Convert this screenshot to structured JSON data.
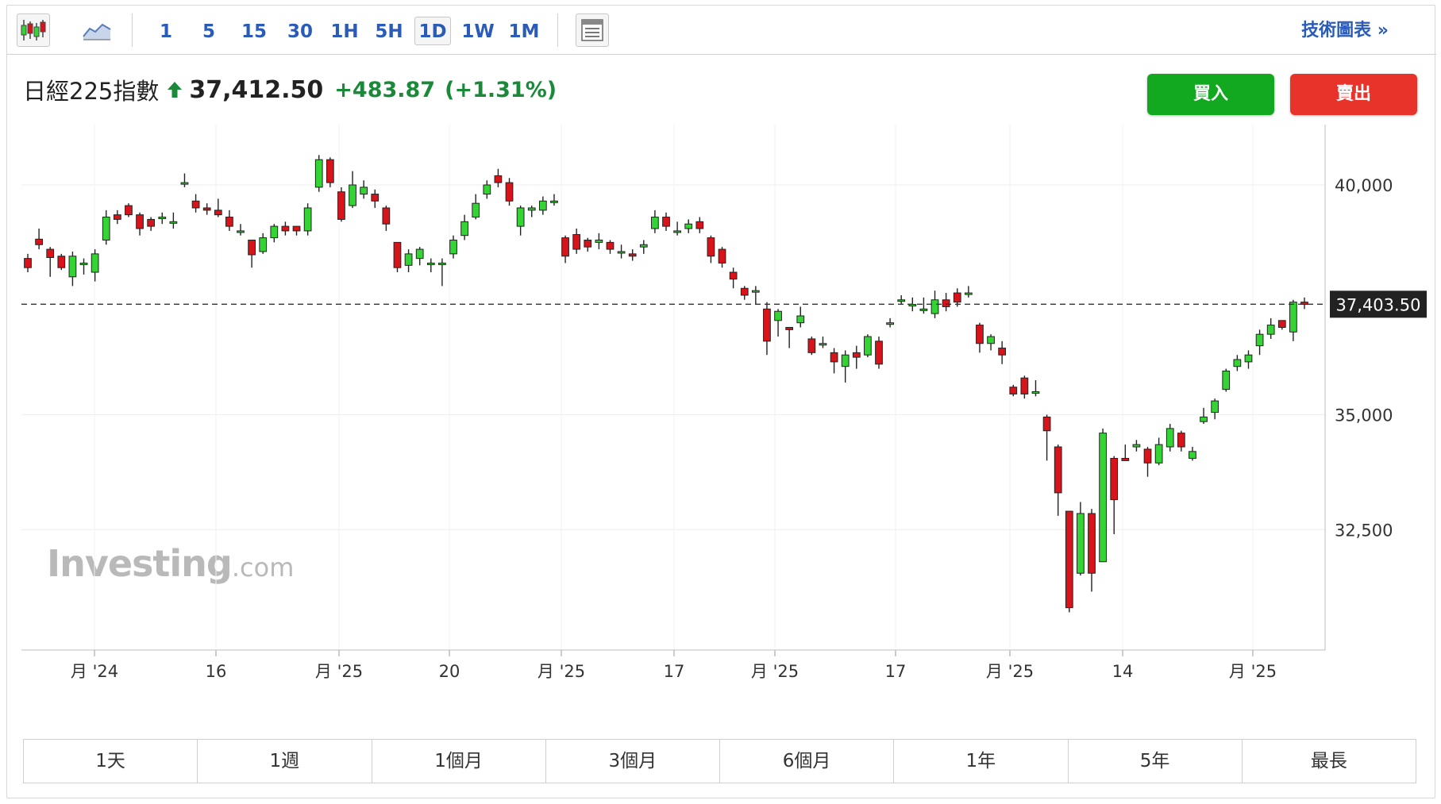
{
  "toolbar": {
    "icons": [
      "candlestick-icon",
      "area-chart-icon",
      "layout-icon"
    ],
    "timeframes": [
      "1",
      "5",
      "15",
      "30",
      "1H",
      "5H",
      "1D",
      "1W",
      "1M"
    ],
    "active_timeframe": "1D",
    "tech_link": "技術圖表 »"
  },
  "header": {
    "name": "日經225指數",
    "price": "37,412.50",
    "change": "+483.87",
    "change_pct": "(+1.31%)",
    "buy_label": "買入",
    "sell_label": "賣出"
  },
  "colors": {
    "up": "#33d433",
    "down": "#d9131a",
    "positive_text": "#1a8a3a",
    "link": "#2a5bb8",
    "buy": "#12a820",
    "sell": "#e8332b"
  },
  "chart_data": {
    "type": "candlestick",
    "y_ticks": [
      {
        "value": 40000,
        "label": "40,000"
      },
      {
        "value": 35000,
        "label": "35,000"
      },
      {
        "value": 32500,
        "label": "32,500"
      }
    ],
    "x_labels": [
      "月 '24",
      "16",
      "月 '25",
      "20",
      "月 '25",
      "17",
      "月 '25",
      "17",
      "月 '25",
      "14",
      "月 '25"
    ],
    "current_price": 37403.5,
    "current_price_label": "37,403.50",
    "ylim": [
      30000,
      41500
    ],
    "candles": [
      [
        38400,
        38200,
        38500,
        38100
      ],
      [
        38820,
        38700,
        39050,
        38600
      ],
      [
        38600,
        38420,
        38650,
        38000
      ],
      [
        38450,
        38200,
        38500,
        38150
      ],
      [
        38000,
        38450,
        38550,
        37800
      ],
      [
        38300,
        38300,
        38400,
        38050
      ],
      [
        38100,
        38500,
        38600,
        37900
      ],
      [
        38800,
        39300,
        39450,
        38700
      ],
      [
        39350,
        39250,
        39450,
        39150
      ],
      [
        39550,
        39350,
        39600,
        39300
      ],
      [
        39350,
        39050,
        39400,
        38900
      ],
      [
        39250,
        39100,
        39300,
        39000
      ],
      [
        39300,
        39300,
        39400,
        39150
      ],
      [
        39200,
        39200,
        39400,
        39050
      ],
      [
        40050,
        40050,
        40250,
        39950
      ],
      [
        39650,
        39500,
        39800,
        39400
      ],
      [
        39500,
        39450,
        39600,
        39350
      ],
      [
        39450,
        39350,
        39700,
        39300
      ],
      [
        39300,
        39100,
        39450,
        39000
      ],
      [
        39000,
        39000,
        39150,
        38900
      ],
      [
        38800,
        38480,
        38800,
        38200
      ],
      [
        38550,
        38850,
        38950,
        38500
      ],
      [
        38850,
        39100,
        39150,
        38750
      ],
      [
        39100,
        39000,
        39200,
        38900
      ],
      [
        39100,
        39000,
        39100,
        38900
      ],
      [
        39000,
        39500,
        39600,
        38900
      ],
      [
        39950,
        40550,
        40650,
        39850
      ],
      [
        40550,
        40050,
        40600,
        39950
      ],
      [
        39850,
        39250,
        39950,
        39200
      ],
      [
        39550,
        40000,
        40300,
        39500
      ],
      [
        39800,
        39950,
        40100,
        39700
      ],
      [
        39800,
        39650,
        39900,
        39500
      ],
      [
        39500,
        39150,
        39550,
        39000
      ],
      [
        38750,
        38200,
        38750,
        38100
      ],
      [
        38250,
        38500,
        38600,
        38100
      ],
      [
        38400,
        38600,
        38650,
        38250
      ],
      [
        38300,
        38300,
        38400,
        38100
      ],
      [
        38300,
        38300,
        38400,
        37800
      ],
      [
        38500,
        38800,
        38900,
        38400
      ],
      [
        38900,
        39200,
        39350,
        38800
      ],
      [
        39300,
        39600,
        39800,
        39250
      ],
      [
        39800,
        40000,
        40100,
        39700
      ],
      [
        40200,
        40050,
        40350,
        39950
      ],
      [
        40050,
        39650,
        40150,
        39550
      ],
      [
        39100,
        39500,
        39550,
        38900
      ],
      [
        39450,
        39500,
        39550,
        39300
      ],
      [
        39450,
        39650,
        39750,
        39350
      ],
      [
        39650,
        39650,
        39800,
        39550
      ],
      [
        38850,
        38450,
        38900,
        38300
      ],
      [
        38920,
        38600,
        39050,
        38500
      ],
      [
        38800,
        38650,
        38850,
        38550
      ],
      [
        38750,
        38800,
        38950,
        38600
      ],
      [
        38750,
        38600,
        38800,
        38500
      ],
      [
        38550,
        38550,
        38700,
        38400
      ],
      [
        38500,
        38450,
        38600,
        38350
      ],
      [
        38650,
        38700,
        38800,
        38500
      ],
      [
        39050,
        39300,
        39450,
        38950
      ],
      [
        39300,
        39100,
        39400,
        39000
      ],
      [
        39000,
        39000,
        39200,
        38900
      ],
      [
        39050,
        39150,
        39250,
        38950
      ],
      [
        39200,
        39050,
        39300,
        38950
      ],
      [
        38850,
        38450,
        38900,
        38300
      ],
      [
        38600,
        38300,
        38650,
        38200
      ],
      [
        38100,
        37950,
        38200,
        37750
      ],
      [
        37750,
        37600,
        37800,
        37500
      ],
      [
        37700,
        37700,
        37800,
        37400
      ],
      [
        37300,
        36600,
        37450,
        36300
      ],
      [
        37050,
        37250,
        37300,
        36700
      ],
      [
        36900,
        36850,
        36900,
        36450
      ],
      [
        37000,
        37150,
        37350,
        36900
      ],
      [
        36650,
        36350,
        36700,
        36300
      ],
      [
        36550,
        36550,
        36700,
        36450
      ],
      [
        36350,
        36150,
        36450,
        35900
      ],
      [
        36050,
        36300,
        36400,
        35700
      ],
      [
        36350,
        36250,
        36500,
        36000
      ],
      [
        36300,
        36700,
        36750,
        36250
      ],
      [
        36600,
        36100,
        36700,
        36000
      ],
      [
        37000,
        37000,
        37100,
        36900
      ],
      [
        37500,
        37500,
        37600,
        37400
      ],
      [
        37400,
        37400,
        37550,
        37250
      ],
      [
        37300,
        37300,
        37550,
        37200
      ],
      [
        37200,
        37500,
        37700,
        37100
      ],
      [
        37500,
        37350,
        37650,
        37250
      ],
      [
        37650,
        37450,
        37750,
        37350
      ],
      [
        37650,
        37650,
        37800,
        37550
      ],
      [
        36950,
        36550,
        37000,
        36350
      ],
      [
        36550,
        36700,
        36750,
        36400
      ],
      [
        36450,
        36300,
        36600,
        36100
      ],
      [
        35600,
        35450,
        35650,
        35400
      ],
      [
        35800,
        35450,
        35850,
        35350
      ],
      [
        35500,
        35500,
        35750,
        35400
      ],
      [
        34950,
        34650,
        35000,
        34000
      ],
      [
        34300,
        33300,
        34350,
        32800
      ],
      [
        32900,
        30800,
        32900,
        30700
      ],
      [
        31550,
        32850,
        33100,
        31500
      ],
      [
        32850,
        31550,
        32950,
        31150
      ],
      [
        31800,
        34600,
        34700,
        31800
      ],
      [
        34050,
        33150,
        34100,
        32400
      ],
      [
        34050,
        34000,
        34350,
        34000
      ],
      [
        34300,
        34350,
        34450,
        34200
      ],
      [
        34250,
        33950,
        34300,
        33650
      ],
      [
        33950,
        34350,
        34500,
        33900
      ],
      [
        34300,
        34700,
        34800,
        34200
      ],
      [
        34600,
        34300,
        34650,
        34200
      ],
      [
        34050,
        34200,
        34300,
        34000
      ],
      [
        34850,
        34950,
        35150,
        34800
      ],
      [
        35050,
        35300,
        35350,
        34900
      ],
      [
        35550,
        35950,
        36000,
        35500
      ],
      [
        36050,
        36200,
        36300,
        35950
      ],
      [
        36150,
        36300,
        36400,
        36000
      ],
      [
        36500,
        36750,
        36850,
        36300
      ],
      [
        36750,
        36950,
        37100,
        36650
      ],
      [
        37050,
        36900,
        37050,
        36850
      ],
      [
        36800,
        37450,
        37500,
        36600
      ],
      [
        37450,
        37400,
        37550,
        37300
      ]
    ]
  },
  "periods": [
    "1天",
    "1週",
    "1個月",
    "3個月",
    "6個月",
    "1年",
    "5年",
    "最長"
  ],
  "watermark": {
    "main": "Investing",
    "domain": ".com"
  }
}
